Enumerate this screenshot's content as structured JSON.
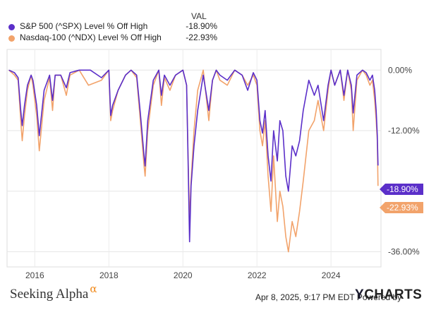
{
  "legend": {
    "header": "VAL",
    "items": [
      {
        "name": "S&P 500 (^SPX) Level % Off High",
        "value": "-18.90%"
      },
      {
        "name": "Nasdaq-100 (^NDX) Level % Off High",
        "value": "-22.93%"
      }
    ]
  },
  "footer": {
    "brand": "Seeking Alpha",
    "brand_mark": "α",
    "timestamp": "Apr 8, 2025, 9:17 PM EDT Powered by",
    "logo_y": "Y",
    "logo_rest": "CHARTS"
  },
  "chart_data": {
    "type": "line",
    "xlim": [
      2015.25,
      2025.35
    ],
    "ylim": [
      -39,
      2
    ],
    "x_ticks": [
      2016,
      2018,
      2020,
      2022,
      2024
    ],
    "x_tick_labels": [
      "2016",
      "2018",
      "2020",
      "2022",
      "2024"
    ],
    "y_ticks": [
      0,
      -12,
      -24,
      -36
    ],
    "y_tick_labels": [
      "0.00%",
      "-12.00%",
      "",
      "-36.00%"
    ],
    "grid": true,
    "end_labels": [
      "-18.90%",
      "-22.93%"
    ],
    "series": [
      {
        "name": "S&P 500 (^SPX) Level % Off High",
        "color": "#5b2fc9",
        "end_value": -18.9,
        "x": [
          2015.3,
          2015.45,
          2015.55,
          2015.62,
          2015.66,
          2015.72,
          2015.8,
          2015.9,
          2015.95,
          2016.05,
          2016.12,
          2016.25,
          2016.4,
          2016.48,
          2016.55,
          2016.7,
          2016.85,
          2016.95,
          2017.2,
          2017.5,
          2017.8,
          2018.0,
          2018.05,
          2018.1,
          2018.25,
          2018.45,
          2018.6,
          2018.75,
          2018.85,
          2018.95,
          2018.98,
          2019.05,
          2019.2,
          2019.35,
          2019.42,
          2019.5,
          2019.65,
          2019.8,
          2020.0,
          2020.1,
          2020.14,
          2020.18,
          2020.22,
          2020.3,
          2020.4,
          2020.55,
          2020.7,
          2020.8,
          2020.9,
          2021.0,
          2021.2,
          2021.4,
          2021.6,
          2021.75,
          2021.9,
          2022.0,
          2022.08,
          2022.15,
          2022.22,
          2022.3,
          2022.38,
          2022.45,
          2022.55,
          2022.62,
          2022.7,
          2022.78,
          2022.85,
          2022.95,
          2023.05,
          2023.15,
          2023.25,
          2023.4,
          2023.55,
          2023.65,
          2023.8,
          2023.92,
          2024.0,
          2024.1,
          2024.25,
          2024.35,
          2024.45,
          2024.55,
          2024.6,
          2024.7,
          2024.85,
          2024.95,
          2025.05,
          2025.12,
          2025.18,
          2025.22,
          2025.25,
          2025.27
        ],
        "values": [
          0,
          -0.5,
          -1.5,
          -8.0,
          -11.0,
          -7.0,
          -3.0,
          -1.0,
          -2.0,
          -7.0,
          -13.0,
          -4.0,
          -1.0,
          -6.0,
          -1.0,
          -1.0,
          -3.5,
          -0.5,
          0,
          0,
          -1.5,
          0,
          -9.0,
          -7.0,
          -4.0,
          -1.0,
          0,
          -1.0,
          -8.5,
          -17.0,
          -19.0,
          -10.0,
          -2.0,
          0,
          -5.0,
          -1.0,
          -3.0,
          -1.0,
          0,
          -3.0,
          -18.0,
          -34.0,
          -23.0,
          -15.0,
          -8.0,
          -1.0,
          -8.0,
          -2.0,
          0,
          -1.0,
          -2.0,
          0,
          -1.0,
          -4.0,
          -0.5,
          -2.0,
          -10.0,
          -12.5,
          -8.0,
          -17.0,
          -22.0,
          -12.0,
          -18.0,
          -10.0,
          -12.0,
          -21.0,
          -24.0,
          -15.0,
          -17.0,
          -14.0,
          -8.0,
          -2.0,
          -5.0,
          -3.0,
          -10.0,
          -3.0,
          0,
          -3.0,
          0,
          -5.0,
          0,
          -3.0,
          -8.5,
          -1.0,
          0,
          -0.5,
          -2.0,
          -1.0,
          -4.0,
          -8.0,
          -13.0,
          -18.9
        ]
      },
      {
        "name": "Nasdaq-100 (^NDX) Level % Off High",
        "color": "#f2a36b",
        "end_value": -22.93,
        "x": [
          2015.3,
          2015.45,
          2015.55,
          2015.62,
          2015.66,
          2015.72,
          2015.8,
          2015.9,
          2015.95,
          2016.05,
          2016.12,
          2016.25,
          2016.4,
          2016.48,
          2016.55,
          2016.7,
          2016.85,
          2016.95,
          2017.2,
          2017.45,
          2017.8,
          2018.0,
          2018.05,
          2018.1,
          2018.25,
          2018.45,
          2018.6,
          2018.75,
          2018.85,
          2018.95,
          2018.98,
          2019.05,
          2019.2,
          2019.35,
          2019.42,
          2019.5,
          2019.65,
          2019.8,
          2020.0,
          2020.1,
          2020.14,
          2020.18,
          2020.22,
          2020.3,
          2020.4,
          2020.55,
          2020.7,
          2020.8,
          2020.9,
          2021.0,
          2021.2,
          2021.4,
          2021.6,
          2021.75,
          2021.9,
          2022.0,
          2022.08,
          2022.15,
          2022.22,
          2022.3,
          2022.38,
          2022.45,
          2022.55,
          2022.62,
          2022.7,
          2022.78,
          2022.85,
          2022.95,
          2023.05,
          2023.15,
          2023.25,
          2023.4,
          2023.55,
          2023.65,
          2023.8,
          2023.92,
          2024.0,
          2024.1,
          2024.25,
          2024.35,
          2024.45,
          2024.55,
          2024.6,
          2024.7,
          2024.85,
          2024.95,
          2025.05,
          2025.12,
          2025.18,
          2025.22,
          2025.25,
          2025.27
        ],
        "values": [
          0,
          -1.0,
          -2.0,
          -10.0,
          -14.0,
          -9.0,
          -4.0,
          -1.0,
          -3.0,
          -9.0,
          -16.0,
          -6.0,
          -1.5,
          -8.0,
          -1.0,
          -1.0,
          -5.0,
          -1.0,
          0,
          -3.0,
          -2.0,
          0,
          -10.0,
          -8.0,
          -4.0,
          -1.0,
          0,
          -1.5,
          -10.0,
          -19.0,
          -21.0,
          -12.0,
          -3.0,
          0,
          -7.0,
          -1.5,
          -4.0,
          -1.0,
          0,
          -3.0,
          -17.0,
          -30.0,
          -22.0,
          -12.0,
          -4.0,
          0,
          -10.0,
          -2.0,
          0,
          -2.0,
          -3.0,
          0,
          -1.0,
          -3.0,
          -1.0,
          -3.0,
          -12.0,
          -15.0,
          -10.0,
          -21.0,
          -28.0,
          -17.0,
          -30.0,
          -24.0,
          -27.0,
          -33.0,
          -36.0,
          -30.0,
          -33.0,
          -28.0,
          -22.0,
          -12.0,
          -10.0,
          -6.0,
          -12.0,
          -4.0,
          0,
          -3.0,
          0,
          -6.0,
          0,
          -4.0,
          -12.0,
          -2.0,
          0,
          -1.0,
          -3.0,
          -2.0,
          -6.0,
          -10.0,
          -14.0,
          -22.93
        ]
      }
    ]
  }
}
